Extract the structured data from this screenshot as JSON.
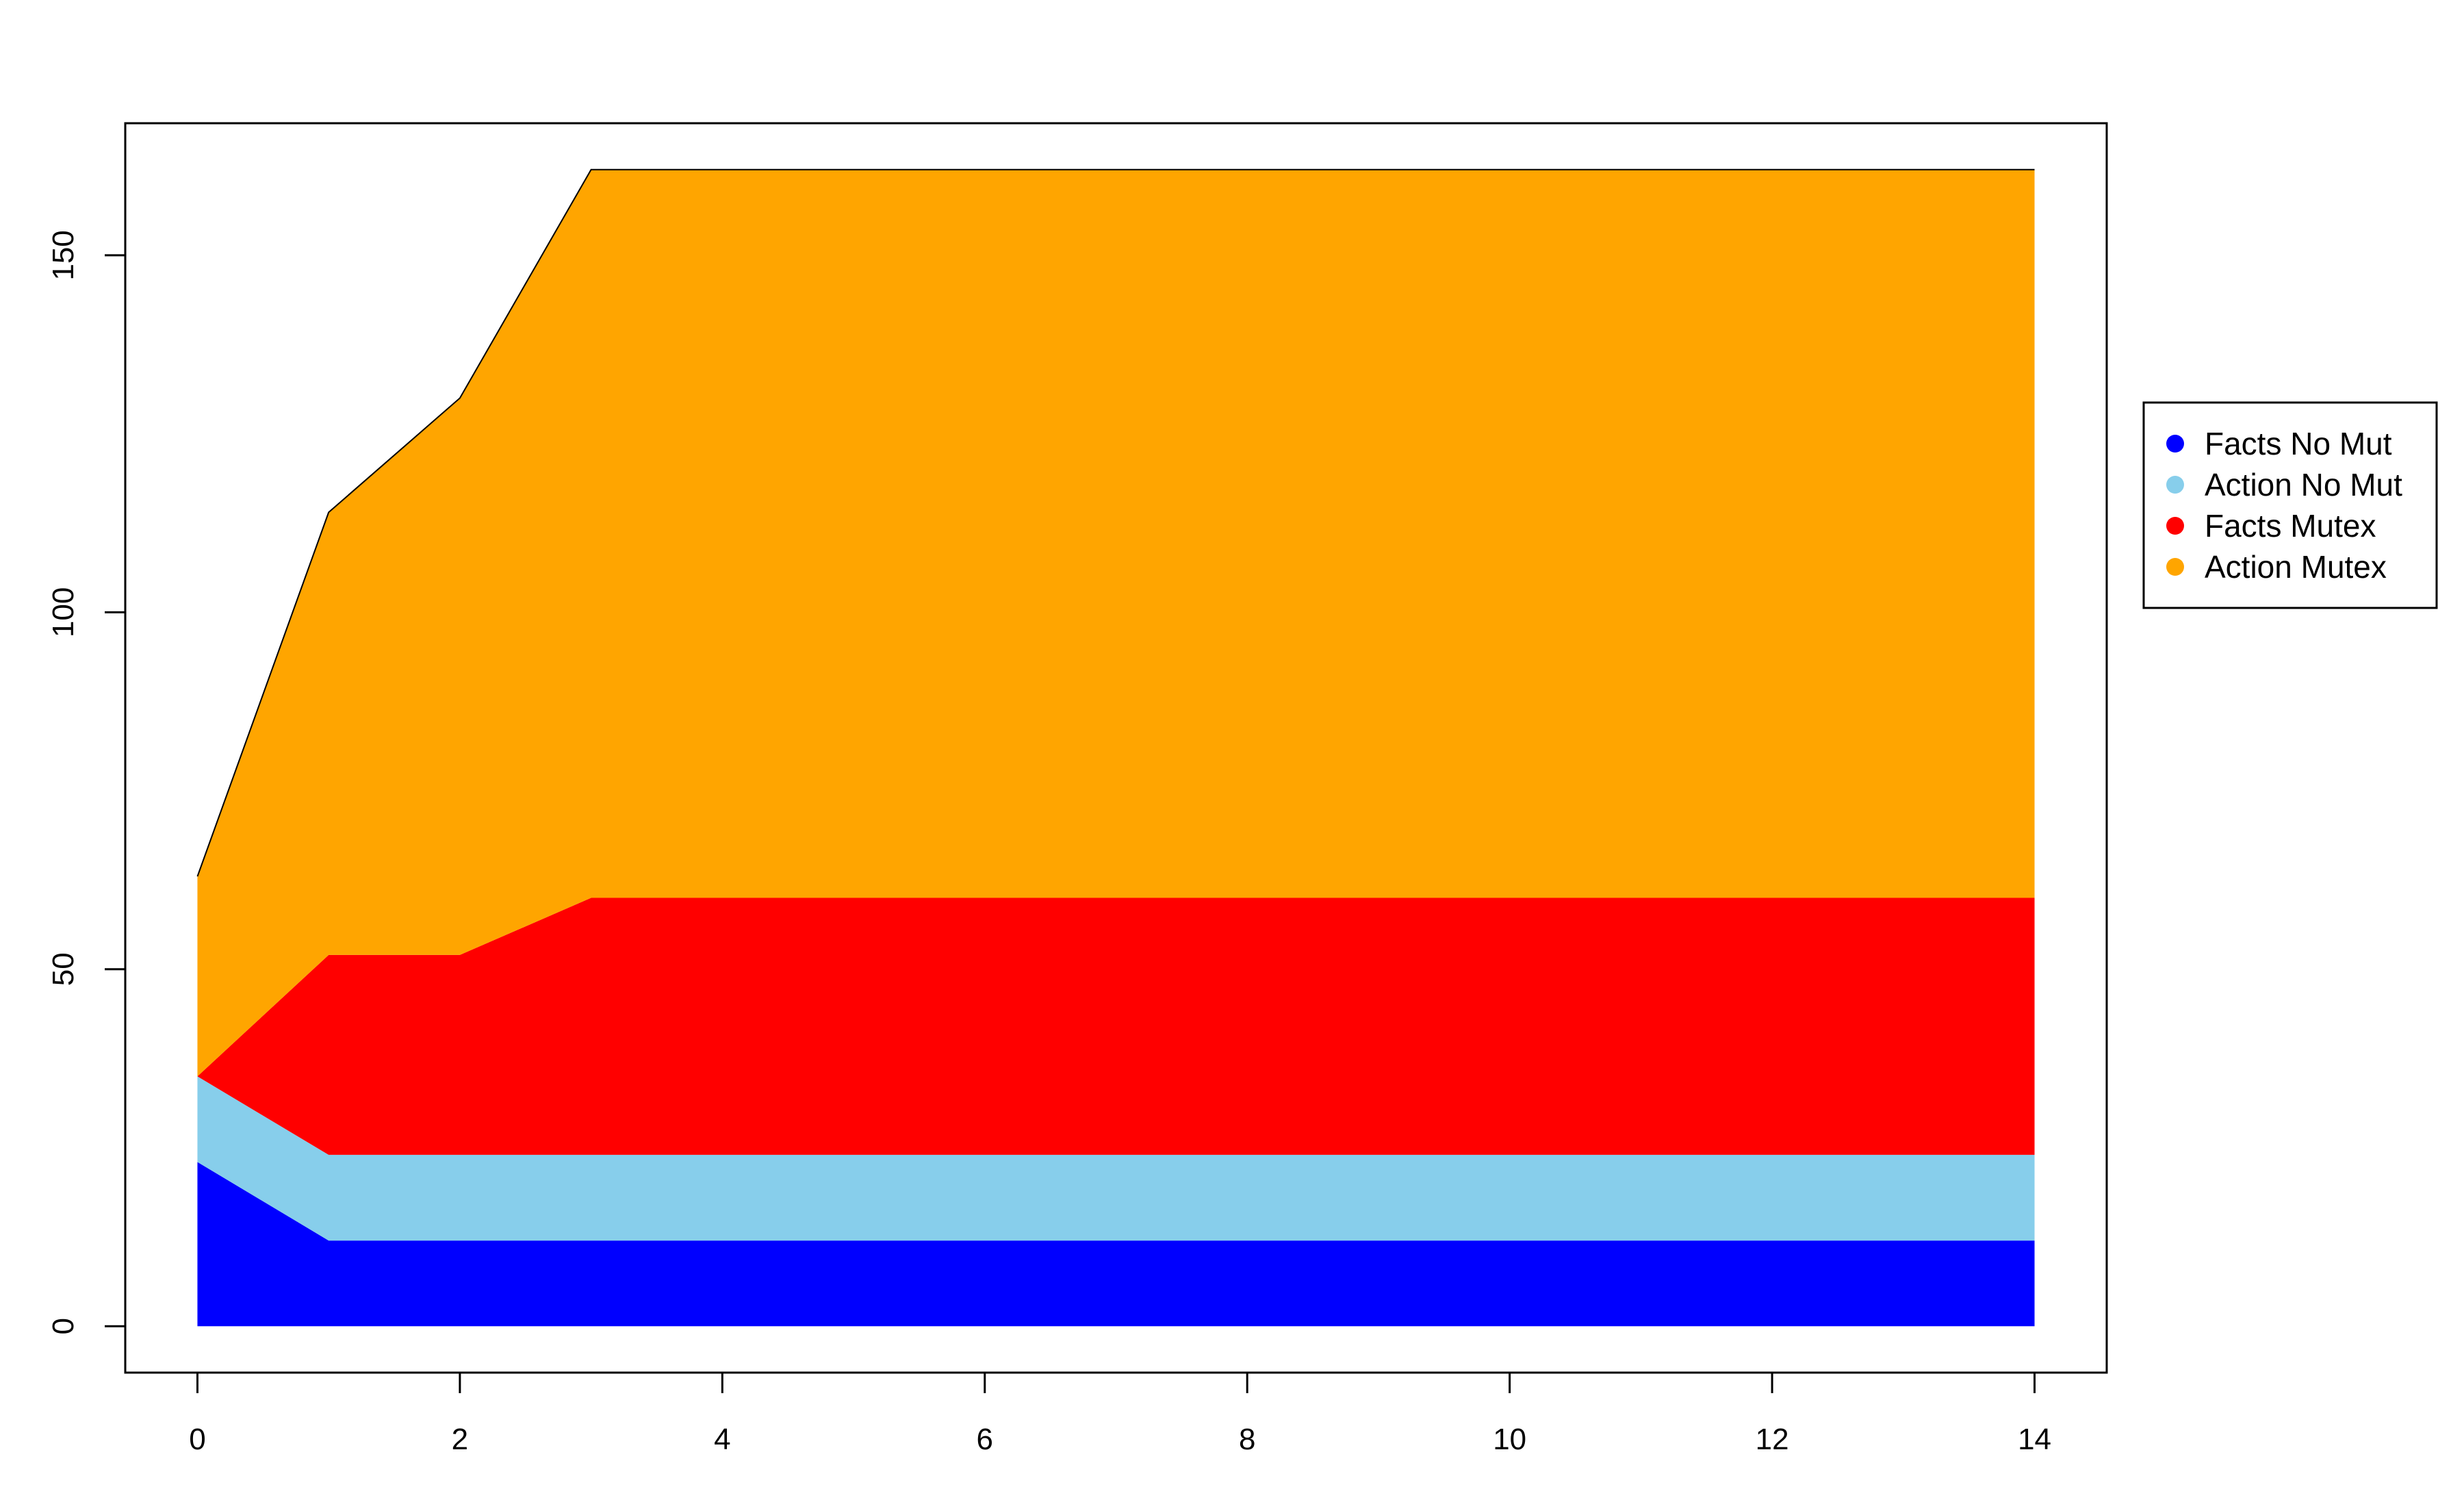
{
  "chart_data": {
    "type": "area",
    "stacked": true,
    "title": "",
    "xlabel": "",
    "ylabel": "",
    "x": [
      0,
      1,
      2,
      3,
      4,
      5,
      6,
      7,
      8,
      9,
      10,
      11,
      12,
      13,
      14
    ],
    "xlim": [
      -0.55,
      14.55
    ],
    "ylim": [
      -6.5,
      168.5
    ],
    "x_ticks": [
      0,
      2,
      4,
      6,
      8,
      10,
      12,
      14
    ],
    "y_ticks": [
      0,
      50,
      100,
      150
    ],
    "grid": false,
    "legend": {
      "placement": "right"
    },
    "series": [
      {
        "name": "Facts No Mut",
        "color": "#0000ff",
        "values": [
          23,
          12,
          12,
          12,
          12,
          12,
          12,
          12,
          12,
          12,
          12,
          12,
          12,
          12,
          12
        ]
      },
      {
        "name": "Action No Mut",
        "color": "#87ceeb",
        "values": [
          12,
          12,
          12,
          12,
          12,
          12,
          12,
          12,
          12,
          12,
          12,
          12,
          12,
          12,
          12
        ]
      },
      {
        "name": "Facts Mutex",
        "color": "#ff0000",
        "values": [
          0,
          28,
          28,
          36,
          36,
          36,
          36,
          36,
          36,
          36,
          36,
          36,
          36,
          36,
          36
        ]
      },
      {
        "name": "Action Mutex",
        "color": "#ffa500",
        "values": [
          28,
          62,
          78,
          102,
          102,
          102,
          102,
          102,
          102,
          102,
          102,
          102,
          102,
          102,
          102
        ]
      }
    ]
  }
}
